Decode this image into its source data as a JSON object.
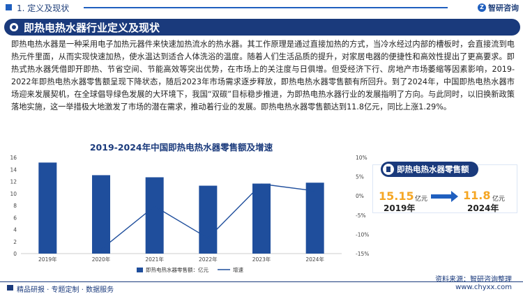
{
  "header": {
    "section": "1. 定义及现状",
    "logo": "智研咨询"
  },
  "banner": {
    "title": "即热电热水器行业定义及现状"
  },
  "body_text": "即热电热水器是一种采用电子加热元器件来快速加热流水的热水器。其工作原理是通过直接加热的方式，当冷水经过内部的槽板时，会直接流到电热元件里面，从而实现快速加热，使水温达到适合人体洗浴的温度。随着人们生活品质的提升，对家居电器的便捷性和高效性提出了更高要求。即热式热水器凭借即开即热、节省空间、节能高效等突出优势，在市场上的关注度与日俱增。但受经济下行、房地产市场萎缩等因素影响，2019-2022年即热电热水器零售额呈现下降状态，随后2023年市场需求逐步释放，即热电热水器零售额有所回升。到了2024年，中国即热电热水器市场迎来发展契机，在全球倡导绿色发展的大环境下，我国“双碳”目标稳步推进，为即热电热水器行业的发展指明了方向。与此同时，以旧换新政策落地实施，这一举措极大地激发了市场的潜在需求，推动着行业的发展。即热电热水器零售额达到11.8亿元，同比上涨1.29%。",
  "chart_data": {
    "type": "bar",
    "title": "2019-2024年中国即热电热水器零售额及增速",
    "categories": [
      "2019年",
      "2020年",
      "2021年",
      "2022年",
      "2023年",
      "2024年"
    ],
    "series": [
      {
        "name": "即热电热水器零售额：亿元",
        "type": "bar",
        "axis": "left",
        "color": "#1f4e9c",
        "values": [
          15.15,
          13.05,
          12.7,
          11.3,
          11.65,
          11.8
        ]
      },
      {
        "name": "增速",
        "type": "line",
        "axis": "right",
        "color": "#1f4e9c",
        "values": [
          null,
          -13.9,
          -2.7,
          -11.0,
          3.1,
          1.29
        ]
      }
    ],
    "y_left": {
      "range": [
        0,
        16
      ],
      "ticks": [
        "0",
        "2",
        "4",
        "6",
        "8",
        "10",
        "12",
        "14",
        "16"
      ]
    },
    "y_right": {
      "range": [
        -15,
        10
      ],
      "ticks": [
        "-15%",
        "-10%",
        "-5%",
        "0%",
        "5%",
        "10%"
      ]
    },
    "legend_position": "bottom",
    "grid": false
  },
  "card": {
    "title": "即热电热水器零售额",
    "start_value": "15.15",
    "start_unit": "亿元",
    "start_year": "2019年",
    "end_value": "11.8",
    "end_unit": "亿元",
    "end_year": "2024年"
  },
  "source": "资料来源：智研咨询整理",
  "footer": {
    "left": "精品研报 · 专题定制 · 数据服务",
    "right": "www.chyxx.com"
  },
  "colors": {
    "primary": "#1a3a7c",
    "accent": "#f5a623",
    "bar": "#1f4e9c"
  }
}
